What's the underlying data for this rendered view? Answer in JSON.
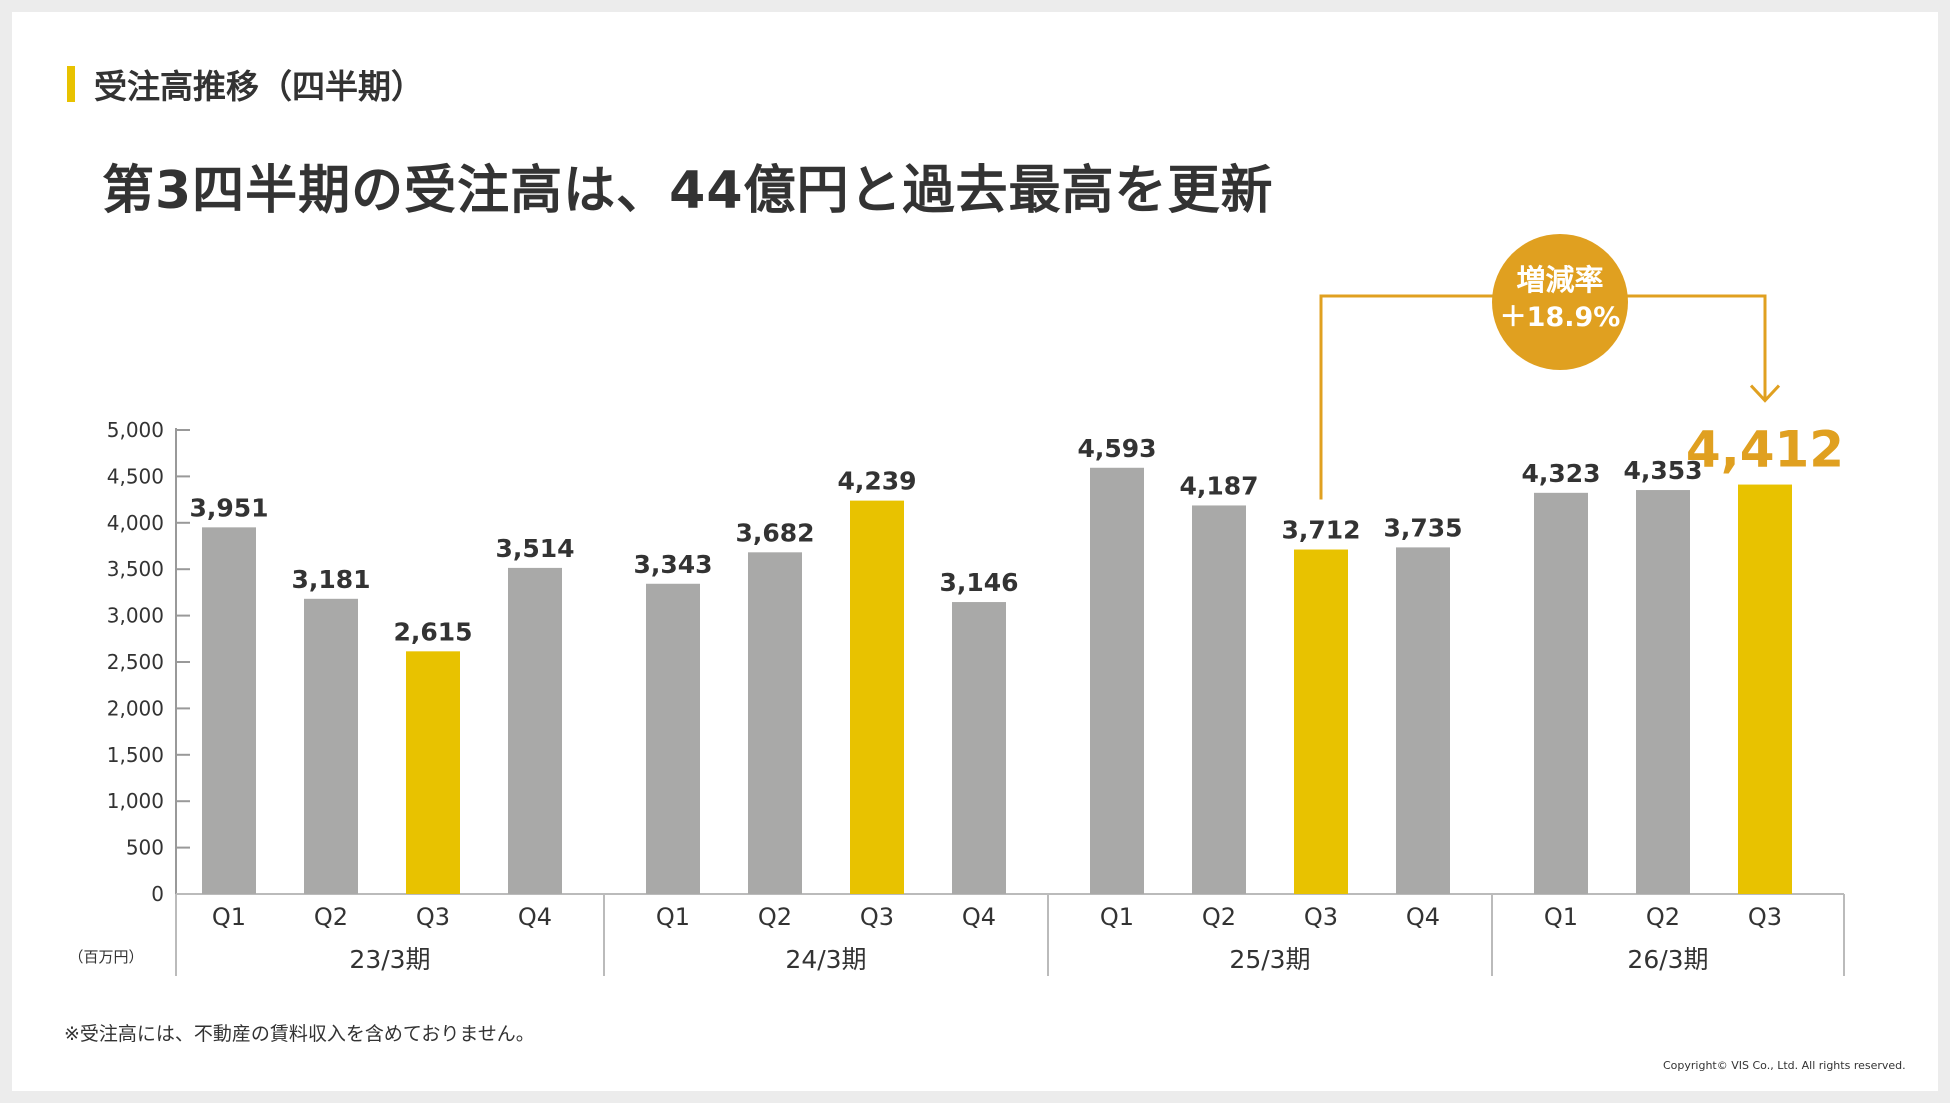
{
  "section_title": "受注高推移（四半期）",
  "headline": "第3四半期の受注高は、44億円と過去最高を更新",
  "footnote": "※受注高には、不動産の賃料収入を含めておりません。",
  "copyright": "Copyright© VIS Co., Ltd. All rights reserved.",
  "colors": {
    "bar_default": "#a9a9a8",
    "bar_highlight": "#e8c200",
    "accent": "#e0a020",
    "text": "#333333"
  },
  "callout": {
    "line1": "増減率",
    "line2": "＋18.9%",
    "from": "25/3期 Q3",
    "to": "26/3期 Q3"
  },
  "chart_data": {
    "type": "bar",
    "unit_label": "（百万円）",
    "ylim": [
      0,
      5000
    ],
    "yticks": [
      "0",
      "500",
      "1,000",
      "1,500",
      "2,000",
      "2,500",
      "3,000",
      "3,500",
      "4,000",
      "4,500",
      "5,000"
    ],
    "groups": [
      {
        "label": "23/3期",
        "bars": [
          {
            "q": "Q1",
            "value": 3951,
            "label": "3,951",
            "highlight": false
          },
          {
            "q": "Q2",
            "value": 3181,
            "label": "3,181",
            "highlight": false
          },
          {
            "q": "Q3",
            "value": 2615,
            "label": "2,615",
            "highlight": true
          },
          {
            "q": "Q4",
            "value": 3514,
            "label": "3,514",
            "highlight": false
          }
        ]
      },
      {
        "label": "24/3期",
        "bars": [
          {
            "q": "Q1",
            "value": 3343,
            "label": "3,343",
            "highlight": false
          },
          {
            "q": "Q2",
            "value": 3682,
            "label": "3,682",
            "highlight": false
          },
          {
            "q": "Q3",
            "value": 4239,
            "label": "4,239",
            "highlight": true
          },
          {
            "q": "Q4",
            "value": 3146,
            "label": "3,146",
            "highlight": false
          }
        ]
      },
      {
        "label": "25/3期",
        "bars": [
          {
            "q": "Q1",
            "value": 4593,
            "label": "4,593",
            "highlight": false
          },
          {
            "q": "Q2",
            "value": 4187,
            "label": "4,187",
            "highlight": false
          },
          {
            "q": "Q3",
            "value": 3712,
            "label": "3,712",
            "highlight": true
          },
          {
            "q": "Q4",
            "value": 3735,
            "label": "3,735",
            "highlight": false
          }
        ]
      },
      {
        "label": "26/3期",
        "bars": [
          {
            "q": "Q1",
            "value": 4323,
            "label": "4,323",
            "highlight": false
          },
          {
            "q": "Q2",
            "value": 4353,
            "label": "4,353",
            "highlight": false
          },
          {
            "q": "Q3",
            "value": 4412,
            "label": "4,412",
            "highlight": true,
            "emphasis": true
          }
        ]
      }
    ]
  }
}
